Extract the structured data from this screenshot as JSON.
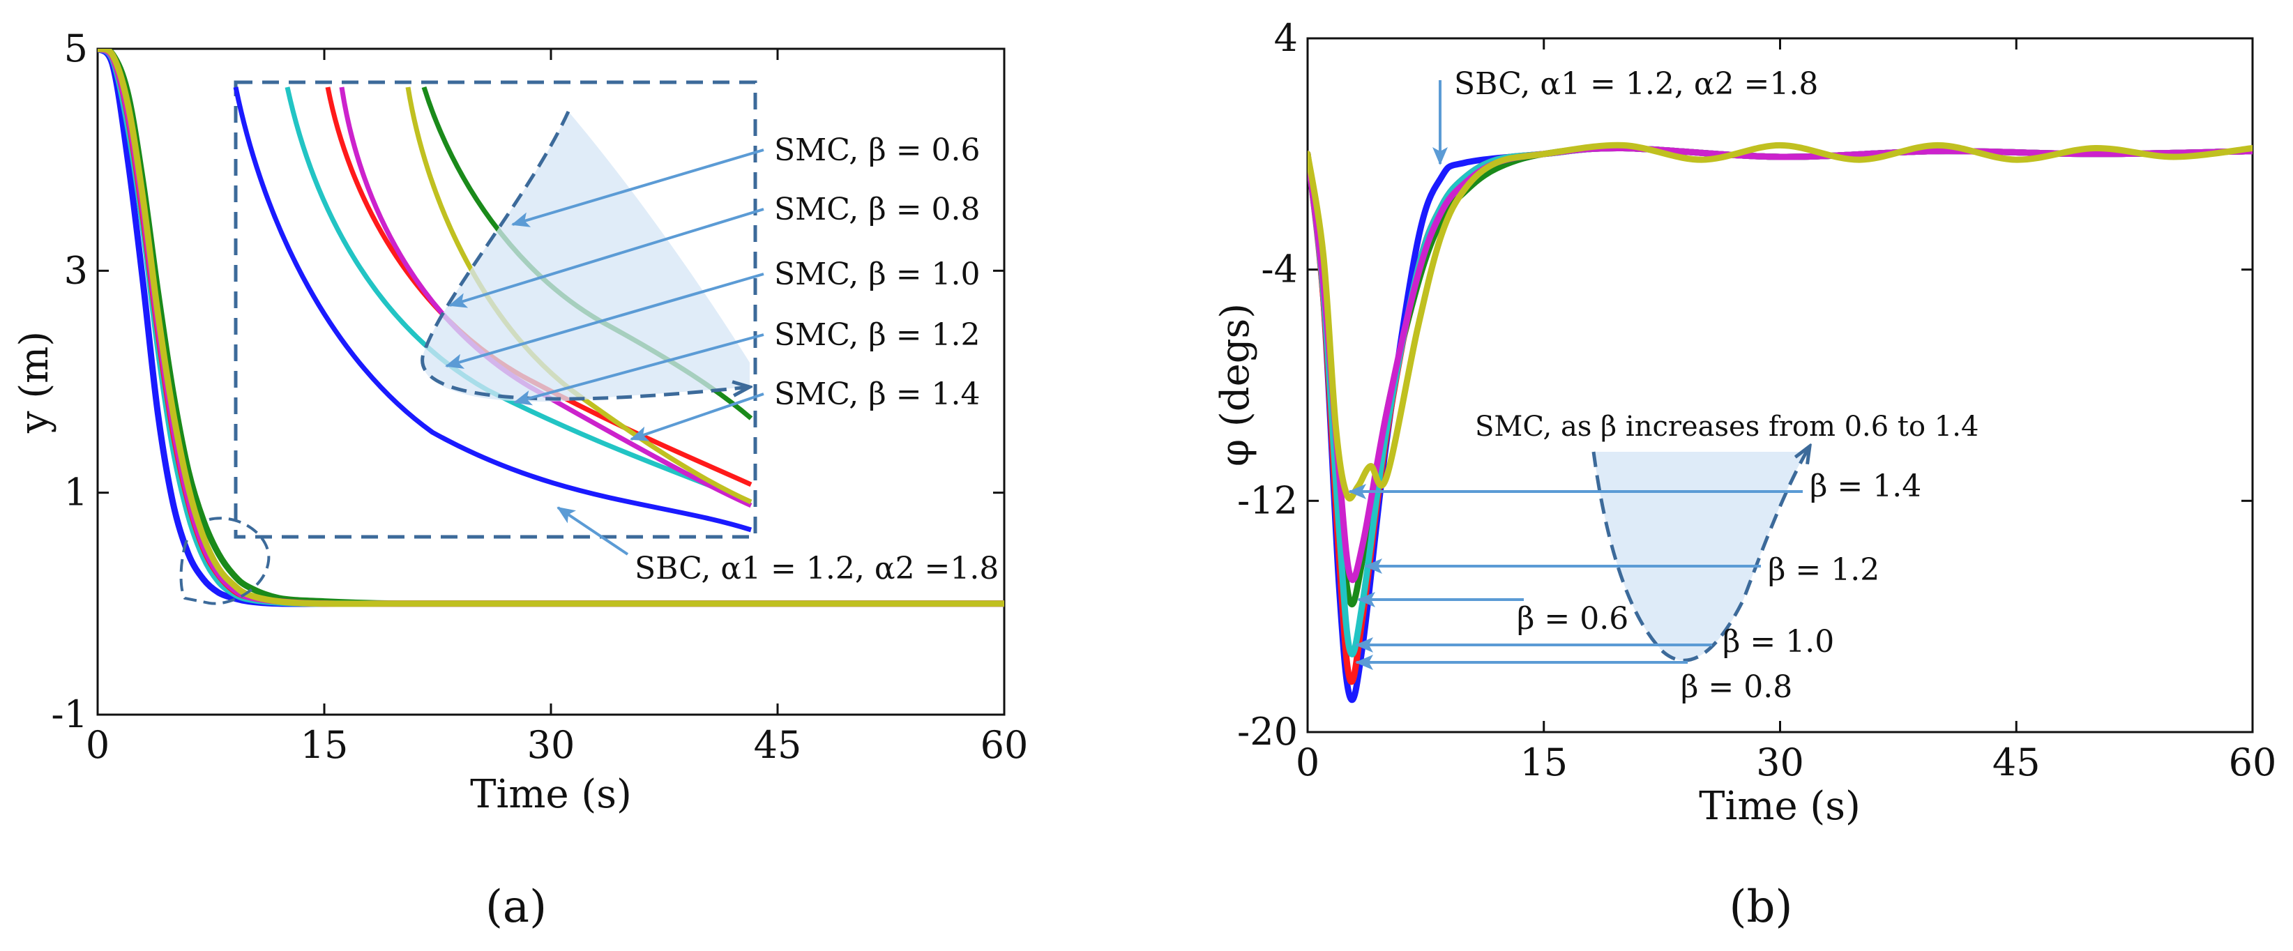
{
  "colors": {
    "blue": "#1a1aff",
    "cyan": "#22c4c4",
    "red": "#ff1a1a",
    "magenta": "#cc22cc",
    "olive": "#c0c020",
    "green": "#1a8a1a",
    "arrow": "#5b9bd5",
    "dash": "#3c6a9a",
    "shade": "#d6e6f6"
  },
  "chart_data": [
    {
      "type": "line",
      "panel_label": "(a)",
      "title": "",
      "xlabel": "Time (s)",
      "ylabel": "y (m)",
      "xlim": [
        0,
        60
      ],
      "ylim": [
        -1,
        5
      ],
      "xticks": [
        "0",
        "15",
        "30",
        "45",
        "60"
      ],
      "yticks": [
        "5",
        "3",
        "1",
        "-1"
      ],
      "series": [
        {
          "name": "SBC, α1 = 1.2, α2 = 1.8",
          "color": "blue",
          "x": [
            0,
            1,
            2,
            3,
            4,
            5,
            6,
            7,
            8,
            9,
            10,
            12,
            15,
            20,
            30,
            45,
            60
          ],
          "y": [
            5.0,
            4.85,
            4.0,
            2.9,
            1.7,
            0.9,
            0.45,
            0.22,
            0.1,
            0.05,
            0.02,
            0.0,
            0.0,
            0.0,
            0.0,
            0.0,
            0.0
          ]
        },
        {
          "name": "SMC, β = 0.6",
          "color": "green",
          "x": [
            0,
            1,
            2,
            3,
            4,
            5,
            6,
            7,
            8,
            9,
            10,
            12,
            15,
            20,
            30,
            45,
            60
          ],
          "y": [
            5.0,
            4.95,
            4.6,
            3.8,
            2.8,
            1.9,
            1.2,
            0.75,
            0.45,
            0.26,
            0.15,
            0.05,
            0.02,
            0.0,
            0.0,
            0.0,
            0.0
          ]
        },
        {
          "name": "SMC, β = 0.8",
          "color": "cyan",
          "x": [
            0,
            1,
            2,
            3,
            4,
            5,
            6,
            7,
            8,
            9,
            10,
            12,
            15,
            20,
            30,
            45,
            60
          ],
          "y": [
            5.0,
            4.9,
            4.3,
            3.4,
            2.3,
            1.4,
            0.8,
            0.42,
            0.2,
            0.09,
            0.04,
            0.01,
            0.0,
            0.0,
            0.0,
            0.0,
            0.0
          ]
        },
        {
          "name": "SMC, β = 1.0",
          "color": "red",
          "x": [
            0,
            1,
            2,
            3,
            4,
            5,
            6,
            7,
            8,
            9,
            10,
            12,
            15,
            20,
            30,
            45,
            60
          ],
          "y": [
            5.0,
            4.92,
            4.4,
            3.5,
            2.45,
            1.55,
            0.92,
            0.5,
            0.26,
            0.12,
            0.06,
            0.02,
            0.0,
            0.0,
            0.0,
            0.0,
            0.0
          ]
        },
        {
          "name": "SMC, β = 1.2",
          "color": "magenta",
          "x": [
            0,
            1,
            2,
            3,
            4,
            5,
            6,
            7,
            8,
            9,
            10,
            12,
            15,
            20,
            30,
            45,
            60
          ],
          "y": [
            5.0,
            4.92,
            4.42,
            3.55,
            2.5,
            1.6,
            0.95,
            0.52,
            0.27,
            0.13,
            0.06,
            0.02,
            0.0,
            0.0,
            0.0,
            0.0,
            0.0
          ]
        },
        {
          "name": "SMC, β = 1.4",
          "color": "olive",
          "x": [
            0,
            1,
            2,
            3,
            4,
            5,
            6,
            7,
            8,
            9,
            10,
            12,
            15,
            20,
            30,
            45,
            60
          ],
          "y": [
            5.0,
            4.94,
            4.5,
            3.65,
            2.6,
            1.72,
            1.05,
            0.6,
            0.32,
            0.17,
            0.08,
            0.02,
            0.0,
            0.0,
            0.0,
            0.0,
            0.0
          ]
        }
      ],
      "annotations": [
        "SMC, β = 0.6",
        "SMC, β = 0.8",
        "SMC, β = 1.0",
        "SMC, β = 1.2",
        "SMC, β = 1.4",
        "SBC, α1 = 1.2, α2 =1.8"
      ]
    },
    {
      "type": "line",
      "panel_label": "(b)",
      "title": "",
      "xlabel": "Time (s)",
      "ylabel": "φ (degs)",
      "xlim": [
        0,
        60
      ],
      "ylim": [
        -20,
        4
      ],
      "xticks": [
        "0",
        "15",
        "30",
        "45",
        "60"
      ],
      "yticks": [
        "4",
        "-4",
        "-12",
        "-20"
      ],
      "series": [
        {
          "name": "SBC, α1 = 1.2, α2 = 1.8",
          "color": "blue",
          "x": [
            0,
            1,
            2,
            2.7,
            3.5,
            5,
            7,
            8.5,
            10,
            15,
            20,
            30,
            40,
            50,
            60
          ],
          "y": [
            0,
            -5,
            -15,
            -18.8,
            -17,
            -10,
            -3,
            -0.8,
            -0.3,
            0,
            0.2,
            -0.1,
            0.1,
            0,
            0.1
          ]
        },
        {
          "name": "SMC, β = 0.6",
          "color": "green",
          "x": [
            0,
            1,
            2,
            2.7,
            3.5,
            5,
            7,
            8.5,
            10,
            12,
            15,
            20,
            30,
            40,
            50,
            60
          ],
          "y": [
            0,
            -4.5,
            -12,
            -15.5,
            -14,
            -9,
            -4.5,
            -2.3,
            -1.3,
            -0.5,
            0,
            0.2,
            -0.1,
            0.1,
            0,
            0.1
          ]
        },
        {
          "name": "SMC, β = 0.8",
          "color": "red",
          "x": [
            0,
            1,
            2,
            2.7,
            3.5,
            5,
            7,
            8.5,
            10,
            12,
            15,
            20,
            30,
            40,
            50,
            60
          ],
          "y": [
            0,
            -5,
            -14,
            -18.2,
            -16,
            -9.8,
            -4,
            -1.8,
            -0.8,
            -0.2,
            0,
            0.2,
            -0.1,
            0.1,
            0,
            0.1
          ]
        },
        {
          "name": "SMC, β = 1.0",
          "color": "cyan",
          "x": [
            0,
            1,
            2,
            2.7,
            3.5,
            5,
            7,
            8.5,
            10,
            12,
            15,
            20,
            30,
            40,
            50,
            60
          ],
          "y": [
            0,
            -4.8,
            -13,
            -17.2,
            -15.5,
            -9.6,
            -4,
            -1.8,
            -0.8,
            -0.2,
            0,
            0.2,
            -0.1,
            0.1,
            0,
            0.1
          ]
        },
        {
          "name": "SMC, β = 1.2",
          "color": "magenta",
          "x": [
            0,
            1,
            2,
            2.7,
            3.5,
            5,
            7,
            8.5,
            10,
            12,
            15,
            20,
            30,
            40,
            50,
            60
          ],
          "y": [
            0,
            -4.5,
            -11,
            -14.6,
            -13.5,
            -9,
            -4.2,
            -2,
            -1,
            -0.3,
            0,
            0.2,
            -0.1,
            0.1,
            0,
            0.1
          ]
        },
        {
          "name": "SMC, β = 1.4",
          "color": "olive",
          "x": [
            0,
            1,
            1.8,
            2.5,
            3.2,
            4,
            5,
            7,
            8.5,
            10,
            12,
            15,
            20,
            25,
            30,
            35,
            40,
            45,
            50,
            55,
            60
          ],
          "y": [
            0,
            -3.5,
            -9.5,
            -11.8,
            -11.5,
            -10.8,
            -11.2,
            -6,
            -2.8,
            -1.2,
            -0.3,
            0,
            0.3,
            -0.2,
            0.3,
            -0.2,
            0.3,
            -0.2,
            0.2,
            -0.1,
            0.2
          ]
        }
      ],
      "annotations": [
        "SBC, α1 = 1.2, α2 =1.8",
        "SMC, as β increases from 0.6 to 1.4",
        "β = 1.4",
        "β = 1.2",
        "β = 0.6",
        "β = 1.0",
        "β = 0.8"
      ]
    }
  ]
}
